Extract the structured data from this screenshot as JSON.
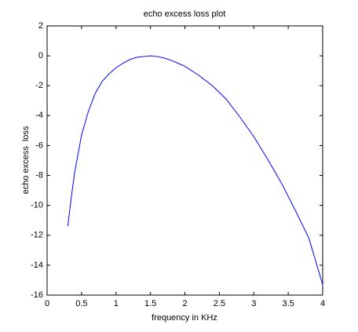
{
  "chart_data": {
    "type": "line",
    "title": "echo excess loss plot",
    "x_label": "frequency in KHz",
    "y_label": "echo excess  loss",
    "x": [
      0.3,
      0.35,
      0.4,
      0.5,
      0.6,
      0.7,
      0.8,
      0.9,
      1.0,
      1.1,
      1.2,
      1.3,
      1.4,
      1.5,
      1.6,
      1.7,
      1.8,
      1.9,
      2.0,
      2.2,
      2.4,
      2.6,
      2.8,
      3.0,
      3.2,
      3.4,
      3.6,
      3.8,
      4.0
    ],
    "series": [
      {
        "color": "#0000ff",
        "values": [
          -11.4,
          -9.5,
          -7.8,
          -5.3,
          -3.7,
          -2.5,
          -1.7,
          -1.2,
          -0.8,
          -0.5,
          -0.25,
          -0.1,
          -0.05,
          0.0,
          -0.05,
          -0.15,
          -0.3,
          -0.5,
          -0.7,
          -1.3,
          -2.0,
          -2.9,
          -4.1,
          -5.4,
          -6.9,
          -8.5,
          -10.3,
          -12.2,
          -15.3
        ]
      }
    ],
    "xlim": [
      0,
      4
    ],
    "ylim": [
      -16,
      2
    ],
    "xticks": [
      0,
      0.5,
      1,
      1.5,
      2,
      2.5,
      3,
      3.5,
      4
    ],
    "yticks": [
      2,
      0,
      -2,
      -4,
      -6,
      -8,
      -10,
      -12,
      -14,
      -16
    ],
    "grid": false
  }
}
